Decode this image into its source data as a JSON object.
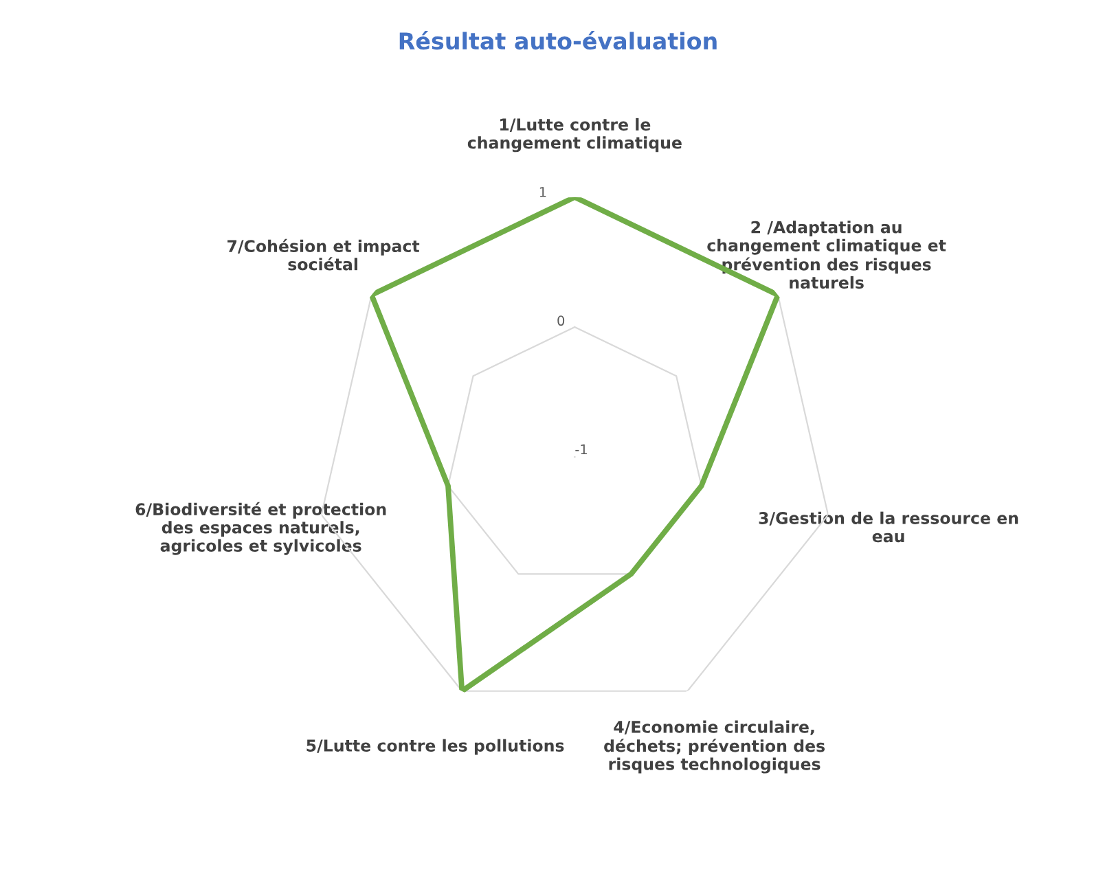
{
  "chart_data": {
    "type": "radar",
    "title": "Résultat auto-évaluation",
    "categories": [
      "1/Lutte contre le\nchangement climatique",
      "2 /Adaptation au\nchangement climatique et\nprévention des risques\nnaturels",
      "3/Gestion de la ressource en\neau",
      "4/Economie circulaire,\ndéchets; prévention des\nrisques technologiques",
      "5/Lutte contre les pollutions",
      "6/Biodiversité et protection\ndes espaces naturels,\nagricoles et sylvicoles",
      "7/Cohésion et impact\nsociétal"
    ],
    "series": [
      {
        "color": "#70ad47",
        "values": [
          1,
          1,
          0,
          0,
          1,
          0,
          1
        ]
      }
    ],
    "ylim": [
      -1,
      1
    ],
    "yticks": [
      -1,
      0,
      1
    ],
    "grid": true,
    "legend": false,
    "marker": "none",
    "line_style": "solid"
  }
}
